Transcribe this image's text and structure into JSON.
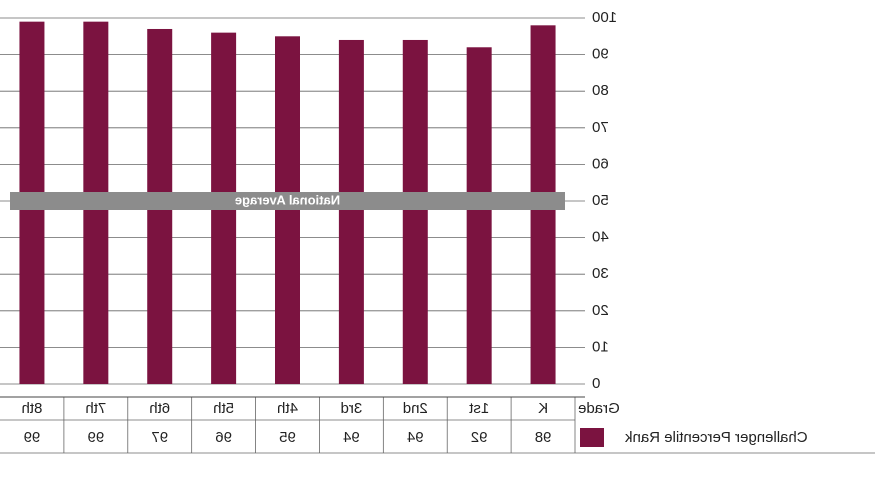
{
  "chart_data": {
    "type": "bar",
    "row_header": "Grade",
    "series_name": "Challenger Percentile Rank",
    "categories": [
      "K",
      "1st",
      "2nd",
      "3rd",
      "4th",
      "5th",
      "6th",
      "7th",
      "8th"
    ],
    "values": [
      98,
      92,
      94,
      94,
      95,
      96,
      97,
      99,
      99
    ],
    "color": "#7b1340",
    "ylim": [
      0,
      100
    ],
    "yticks": [
      0,
      10,
      20,
      30,
      40,
      50,
      60,
      70,
      80,
      90,
      100
    ],
    "grid": true,
    "reference_band": {
      "label": "National Average",
      "value": 50,
      "color": "#8c8c8c"
    }
  }
}
